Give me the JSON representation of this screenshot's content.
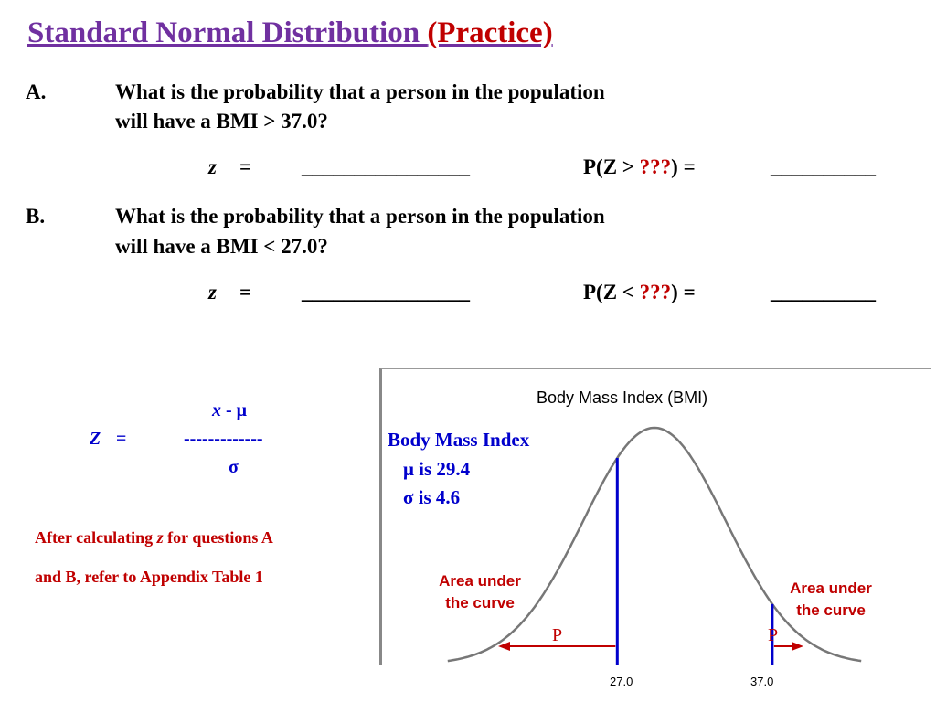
{
  "title": {
    "main": "Standard Normal Distribution",
    "accent": "(Practice)"
  },
  "questions": [
    {
      "letter": "A.",
      "line1": "What is the probability that a person in the population",
      "line2": "will have a BMI > 37.0?",
      "z_symbol": "z",
      "equals": "=",
      "z_blank": "________________",
      "p_prefix": "P(Z >",
      "p_unknown": "???",
      "p_suffix": ") =",
      "p_blank": "__________"
    },
    {
      "letter": "B.",
      "line1": "What is the probability that a person in the population",
      "line2": "will have a BMI < 27.0?",
      "z_symbol": "z",
      "equals": "=",
      "z_blank": "________________",
      "p_prefix": "P(Z <",
      "p_unknown": "???",
      "p_suffix": ") =",
      "p_blank": "__________"
    }
  ],
  "formula": {
    "numerator_x": "x",
    "numerator_rest": " - μ",
    "lhs": "Z",
    "equals": "=",
    "bar": "-------------",
    "denominator": "σ"
  },
  "note": {
    "line1_pre": "After calculating ",
    "line1_z": "z",
    "line1_post": " for questions A",
    "line2": "and B, refer to Appendix Table 1"
  },
  "chart_data": {
    "type": "area",
    "title": "Body Mass Index (BMI)",
    "legend_lines": [
      "Body Mass Index",
      "μ is 29.4",
      "σ is 4.6"
    ],
    "mean": 29.4,
    "sd": 4.6,
    "markers": [
      27.0,
      37.0
    ],
    "tick_labels": [
      "27.0",
      "37.0"
    ],
    "area_labels": [
      {
        "line1": "Area under",
        "line2": "the curve"
      },
      {
        "line1": "Area under",
        "line2": "the curve"
      }
    ],
    "p_labels": [
      "P",
      "P"
    ],
    "colors": {
      "curve": "#777777",
      "marker": "#0000cc",
      "arrow": "#c00000"
    }
  }
}
